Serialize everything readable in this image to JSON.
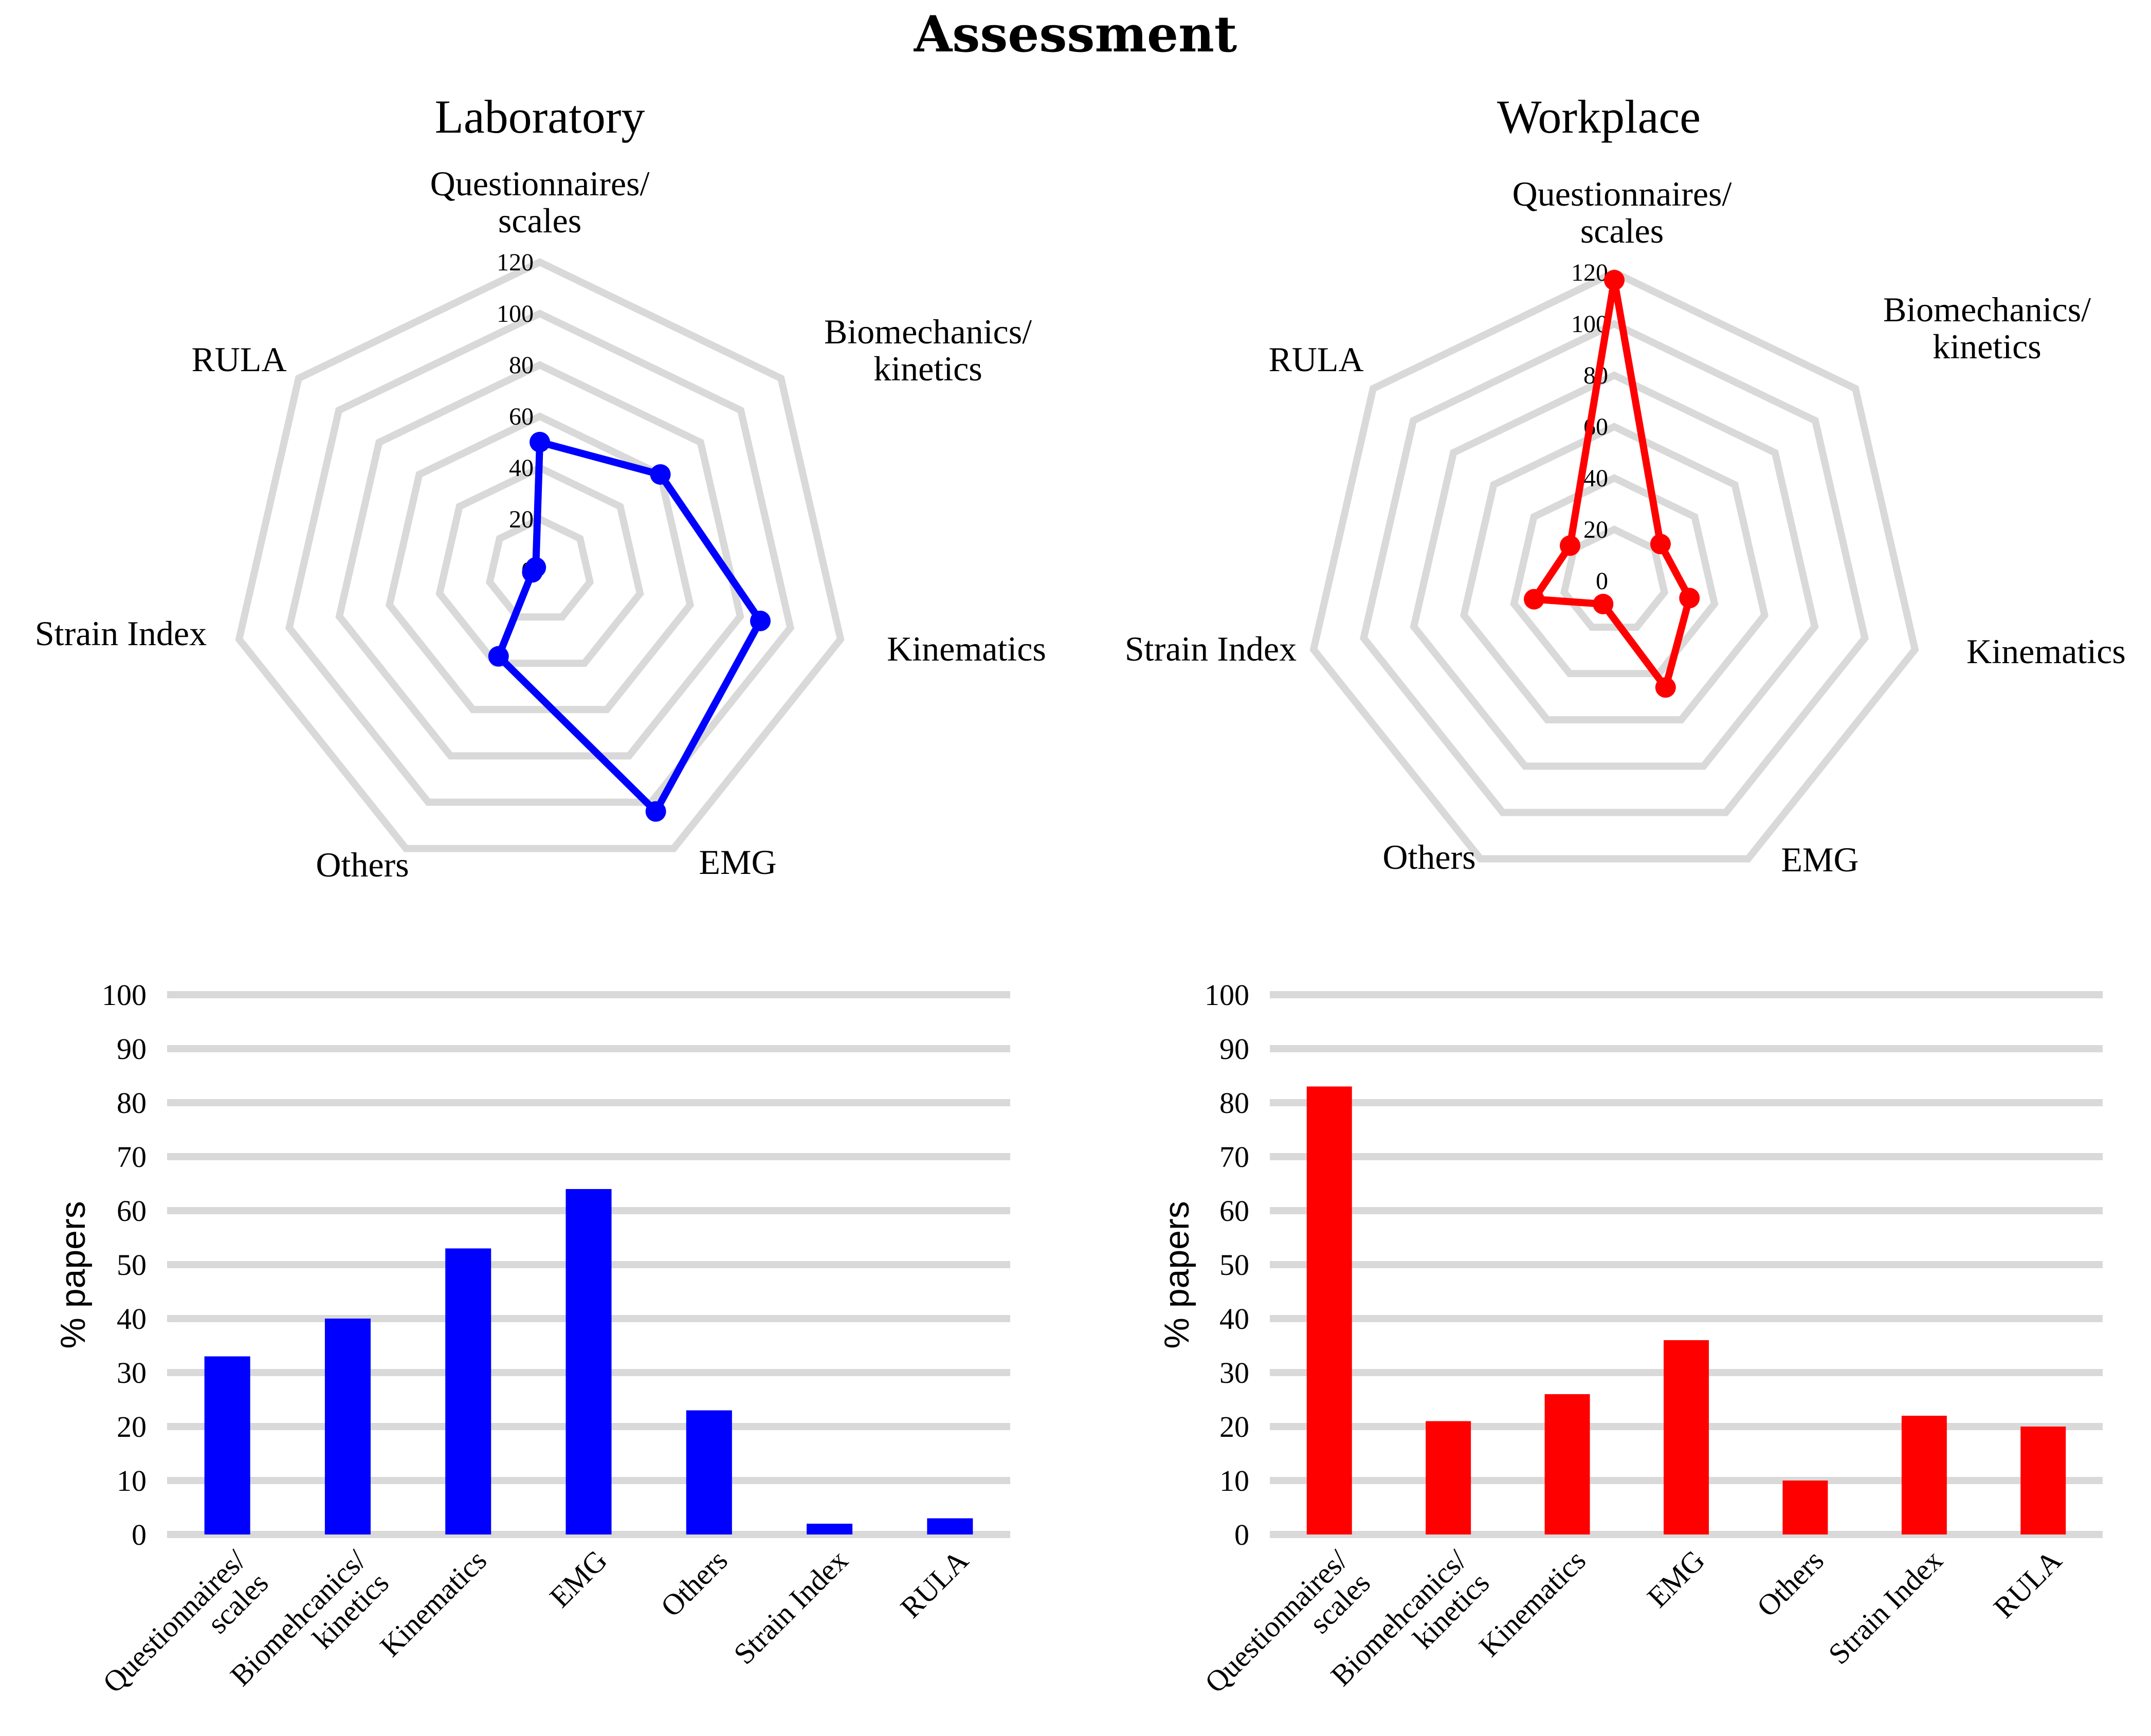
{
  "figure_title": "Assessment",
  "colors": {
    "lab": "#0000ff",
    "work": "#ff0000",
    "grid": "#d9d9d9"
  },
  "chart_data": [
    {
      "id": "radar_lab",
      "type": "radar",
      "title": "Laboratory",
      "axes": [
        [
          "Questionnaires/",
          "scales"
        ],
        [
          "Biomechanics/",
          "kinetics"
        ],
        [
          "Kinematics"
        ],
        [
          "EMG"
        ],
        [
          "Others"
        ],
        [
          "Strain Index"
        ],
        [
          "RULA"
        ]
      ],
      "rlim": [
        0,
        120
      ],
      "rticks": [
        "0",
        "20",
        "40",
        "60",
        "80",
        "100",
        "120"
      ],
      "values": [
        50,
        60,
        88,
        104,
        37,
        3,
        2
      ],
      "series_name": "Laboratory"
    },
    {
      "id": "radar_work",
      "type": "radar",
      "title": "Workplace",
      "axes": [
        [
          "Questionnaires/",
          "scales"
        ],
        [
          "Biomechanics/",
          "kinetics"
        ],
        [
          "Kinematics"
        ],
        [
          "EMG"
        ],
        [
          "Others"
        ],
        [
          "Strain Index"
        ],
        [
          "RULA"
        ]
      ],
      "rlim": [
        0,
        120
      ],
      "rticks": [
        "0",
        "20",
        "40",
        "60",
        "80",
        "100",
        "120"
      ],
      "values": [
        117,
        23,
        30,
        46,
        10,
        32,
        22
      ],
      "series_name": "Workplace"
    },
    {
      "id": "bar_lab",
      "type": "bar",
      "title": "",
      "ylabel": "% papers",
      "xlabel": "",
      "ylim": [
        0,
        100
      ],
      "yticks": [
        "0",
        "10",
        "20",
        "30",
        "40",
        "50",
        "60",
        "70",
        "80",
        "90",
        "100"
      ],
      "categories": [
        [
          "Questionnaires/",
          "scales"
        ],
        [
          "Biomehcanics/",
          "kinetics"
        ],
        [
          "Kinematics"
        ],
        [
          "EMG"
        ],
        [
          "Others"
        ],
        [
          "Strain Index"
        ],
        [
          "RULA"
        ]
      ],
      "values": [
        33,
        40,
        53,
        64,
        23,
        2,
        3
      ],
      "grid": true
    },
    {
      "id": "bar_work",
      "type": "bar",
      "title": "",
      "ylabel": "% papers",
      "xlabel": "",
      "ylim": [
        0,
        100
      ],
      "yticks": [
        "0",
        "10",
        "20",
        "30",
        "40",
        "50",
        "60",
        "70",
        "80",
        "90",
        "100"
      ],
      "categories": [
        [
          "Questionnaires/",
          "scales"
        ],
        [
          "Biomehcanics/",
          "kinetics"
        ],
        [
          "Kinematics"
        ],
        [
          "EMG"
        ],
        [
          "Others"
        ],
        [
          "Strain Index"
        ],
        [
          "RULA"
        ]
      ],
      "values": [
        83,
        21,
        26,
        36,
        10,
        22,
        20
      ],
      "grid": true
    }
  ]
}
